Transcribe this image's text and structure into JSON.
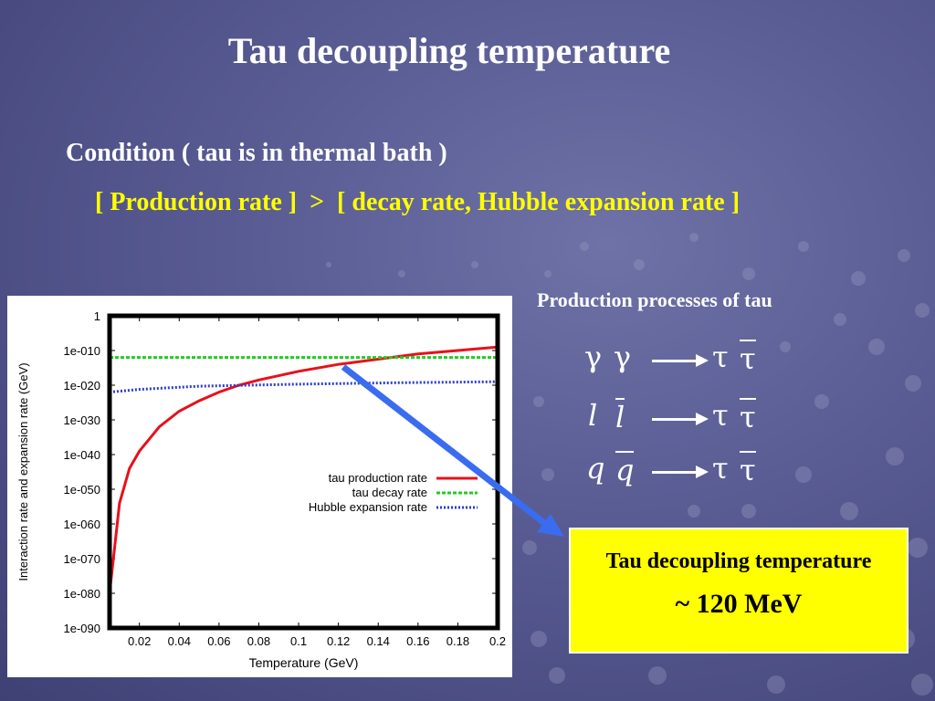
{
  "slide": {
    "title": "Tau decoupling temperature",
    "condition": "Condition ( tau is in thermal bath )",
    "inequality": "[ Production rate ]  >  [ decay rate, Hubble expansion rate ]",
    "processes_title": "Production processes of tau",
    "processes": [
      {
        "a": "γ",
        "b": "γ",
        "c": "τ",
        "d": "τ"
      },
      {
        "a": "l",
        "b": "l",
        "c": "τ",
        "d": "τ"
      },
      {
        "a": "q",
        "b": "q",
        "c": "τ",
        "d": "τ"
      }
    ],
    "result_title": "Tau decoupling temperature",
    "result_value": "~ 120 MeV",
    "colors": {
      "accent_text": "#ffff00",
      "arrow": "#3a6cf0",
      "result_bg": "#ffff00"
    }
  },
  "chart_data": {
    "type": "line",
    "xlabel": "Temperature (GeV)",
    "ylabel": "Interaction rate and expansion rate (GeV)",
    "xlim": [
      0.005,
      0.2
    ],
    "ylim_exponent": [
      -90,
      0
    ],
    "y_scale": "log",
    "x_ticks": [
      "0.02",
      "0.04",
      "0.06",
      "0.08",
      "0.1",
      "0.12",
      "0.14",
      "0.16",
      "0.18",
      "0.2"
    ],
    "x_tick_values": [
      0.02,
      0.04,
      0.06,
      0.08,
      0.1,
      0.12,
      0.14,
      0.16,
      0.18,
      0.2
    ],
    "y_ticks": [
      "1",
      "1e-010",
      "1e-020",
      "1e-030",
      "1e-040",
      "1e-050",
      "1e-060",
      "1e-070",
      "1e-080",
      "1e-090"
    ],
    "y_tick_exponents": [
      0,
      -10,
      -20,
      -30,
      -40,
      -50,
      -60,
      -70,
      -80,
      -90
    ],
    "legend_position": "center-right",
    "series": [
      {
        "name": "tau production rate",
        "color": "#e8101a",
        "style": "solid",
        "x": [
          0.005,
          0.01,
          0.015,
          0.02,
          0.03,
          0.04,
          0.05,
          0.06,
          0.07,
          0.08,
          0.1,
          0.12,
          0.14,
          0.16,
          0.18,
          0.2
        ],
        "log10_y": [
          -80,
          -54,
          -44,
          -39,
          -32,
          -27.5,
          -24.5,
          -22,
          -20,
          -18.5,
          -16,
          -14,
          -12.5,
          -11,
          -10,
          -9
        ]
      },
      {
        "name": "tau decay rate",
        "color": "#22cc22",
        "style": "dashed",
        "x": [
          0.005,
          0.2
        ],
        "log10_y": [
          -12,
          -12
        ]
      },
      {
        "name": "Hubble expansion rate",
        "color": "#2a3ed0",
        "style": "dotted",
        "x": [
          0.005,
          0.02,
          0.05,
          0.1,
          0.15,
          0.2
        ],
        "log10_y": [
          -22,
          -21.2,
          -20.3,
          -19.7,
          -19.3,
          -19
        ]
      }
    ]
  }
}
